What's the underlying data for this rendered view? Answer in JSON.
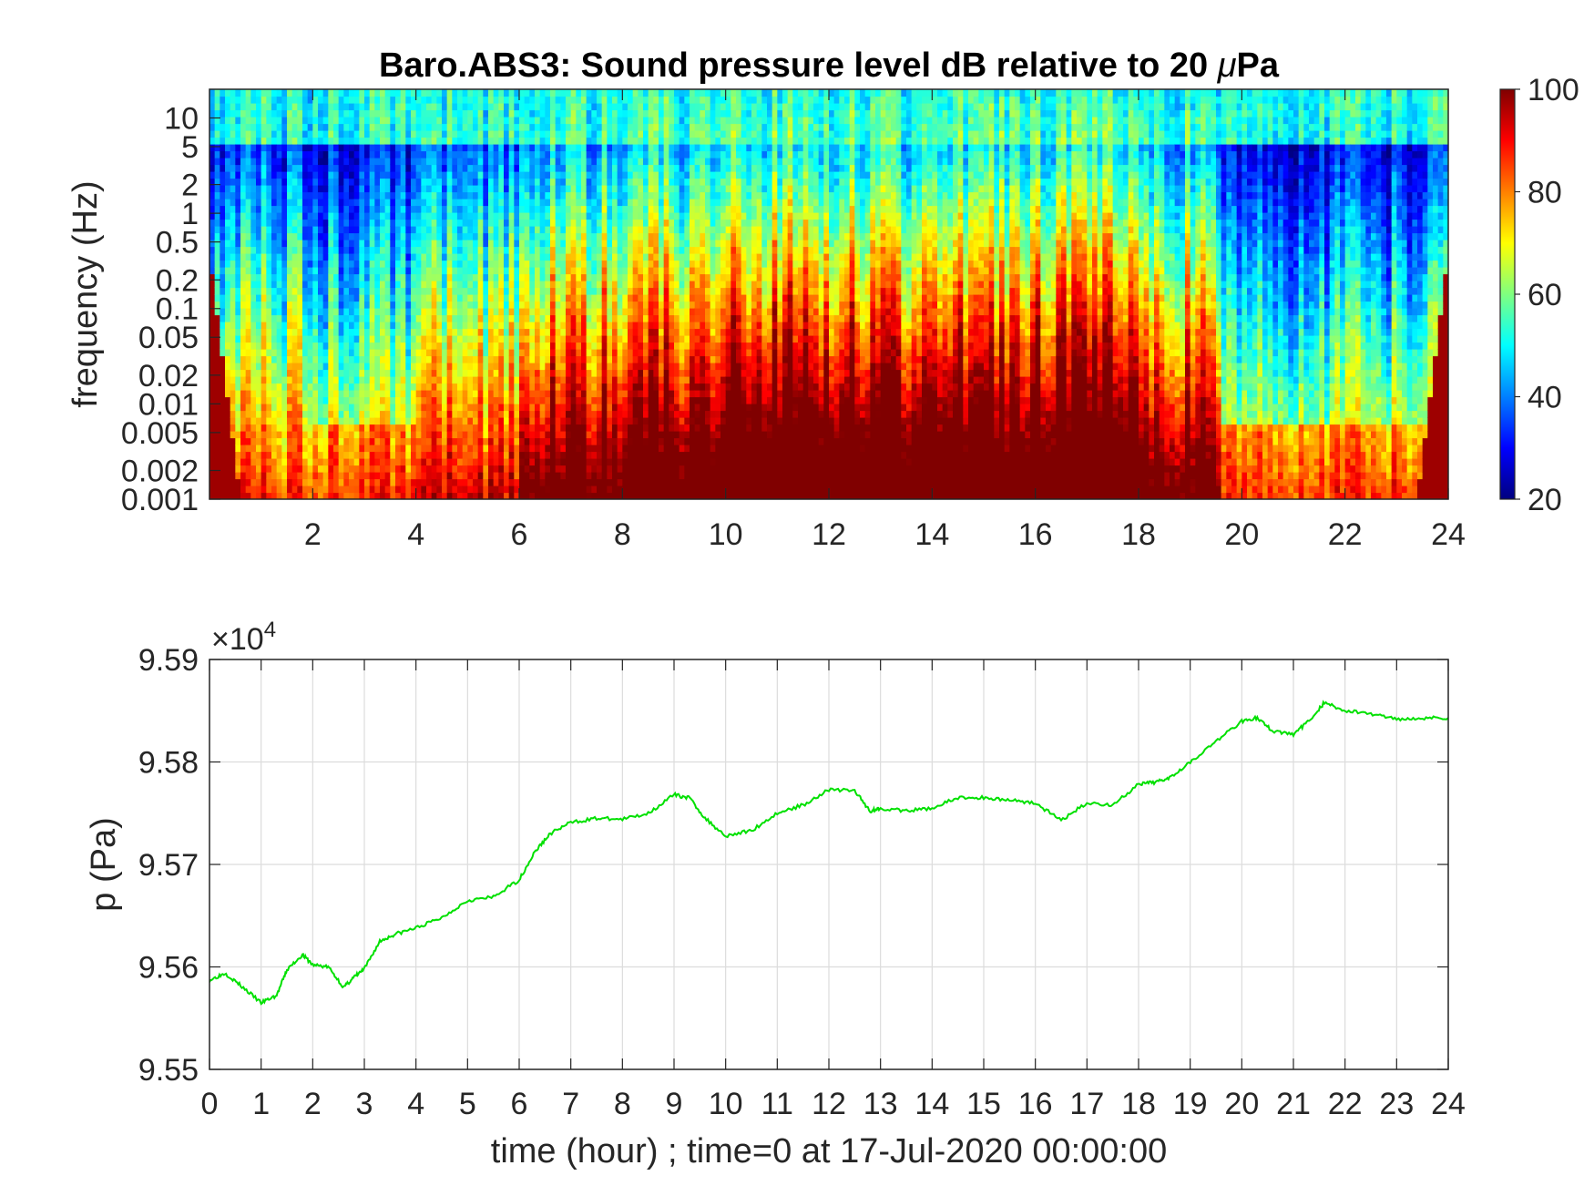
{
  "chart_data": [
    {
      "type": "heatmap",
      "title": "Baro.ABS3: Sound pressure level dB relative to 20 μPa",
      "title_parts": [
        "Baro.ABS3: Sound pressure level dB relative to 20 ",
        "μ",
        "Pa"
      ],
      "xlabel": "",
      "ylabel": "frequency (Hz)",
      "xlim": [
        0,
        24
      ],
      "ylim": [
        0.001,
        20
      ],
      "y_scale": "log",
      "x_ticks": [
        "2",
        "4",
        "6",
        "8",
        "10",
        "12",
        "14",
        "16",
        "18",
        "20",
        "22",
        "24"
      ],
      "y_ticks": [
        "0.001",
        "0.002",
        "0.005",
        "0.01",
        "0.02",
        "0.05",
        "0.1",
        "0.2",
        "0.5",
        "1",
        "2",
        "5",
        "10"
      ],
      "colormap": "jet",
      "colorbar": {
        "ticks": [
          "20",
          "40",
          "60",
          "80",
          "100"
        ],
        "range": [
          20,
          100
        ]
      },
      "activity_segments": [
        {
          "x": [
            0,
            2
          ],
          "level": 0.45
        },
        {
          "x": [
            2,
            4
          ],
          "level": 0.3
        },
        {
          "x": [
            4,
            6
          ],
          "level": 0.55
        },
        {
          "x": [
            6,
            8
          ],
          "level": 0.75
        },
        {
          "x": [
            8,
            10
          ],
          "level": 0.8
        },
        {
          "x": [
            10,
            12
          ],
          "level": 0.92
        },
        {
          "x": [
            12,
            14
          ],
          "level": 0.88
        },
        {
          "x": [
            14,
            16
          ],
          "level": 0.85
        },
        {
          "x": [
            16,
            18
          ],
          "level": 0.9
        },
        {
          "x": [
            18,
            19.6
          ],
          "level": 0.75
        },
        {
          "x": [
            19.6,
            22
          ],
          "level": 0.25
        },
        {
          "x": [
            22,
            24
          ],
          "level": 0.3
        }
      ]
    },
    {
      "type": "line",
      "title": "",
      "xlabel": "time (hour) ; time=0 at 17-Jul-2020 00:00:00",
      "ylabel": "p (Pa)",
      "xlim": [
        0,
        24
      ],
      "ylim": [
        95500,
        95900
      ],
      "exponent_label": "×10",
      "exponent_power": "4",
      "x_ticks": [
        "0",
        "1",
        "2",
        "3",
        "4",
        "5",
        "6",
        "7",
        "8",
        "9",
        "10",
        "11",
        "12",
        "13",
        "14",
        "15",
        "16",
        "17",
        "18",
        "19",
        "20",
        "21",
        "22",
        "23",
        "24"
      ],
      "y_ticks": [
        "9.55",
        "9.56",
        "9.57",
        "9.58",
        "9.59"
      ],
      "grid": true,
      "line_color": "#00e000",
      "x": [
        0,
        0.3,
        0.6,
        1.0,
        1.3,
        1.5,
        1.8,
        2.0,
        2.3,
        2.6,
        2.8,
        3.0,
        3.3,
        3.6,
        4.0,
        4.5,
        5.0,
        5.5,
        6.0,
        6.3,
        6.6,
        7.0,
        7.5,
        8.0,
        8.5,
        9.0,
        9.3,
        9.6,
        10.0,
        10.5,
        11.0,
        11.5,
        12.0,
        12.5,
        12.8,
        13.0,
        13.5,
        14.0,
        14.5,
        15.0,
        15.5,
        16.0,
        16.5,
        17.0,
        17.5,
        18.0,
        18.3,
        18.6,
        19.0,
        19.5,
        20.0,
        20.3,
        20.6,
        21.0,
        21.3,
        21.6,
        22.0,
        22.5,
        23.0,
        23.5,
        24.0
      ],
      "y": [
        95587,
        95594,
        95582,
        95565,
        95572,
        95597,
        95612,
        95602,
        95600,
        95580,
        95590,
        95598,
        95625,
        95632,
        95638,
        95648,
        95665,
        95668,
        95685,
        95712,
        95730,
        95741,
        95745,
        95744,
        95750,
        95768,
        95765,
        95745,
        95728,
        95733,
        95750,
        95758,
        95773,
        95772,
        95752,
        95755,
        95752,
        95755,
        95765,
        95765,
        95763,
        95760,
        95743,
        95760,
        95758,
        95778,
        95780,
        95785,
        95800,
        95820,
        95840,
        95843,
        95830,
        95827,
        95840,
        95858,
        95850,
        95847,
        95842,
        95843,
        95843
      ]
    }
  ]
}
